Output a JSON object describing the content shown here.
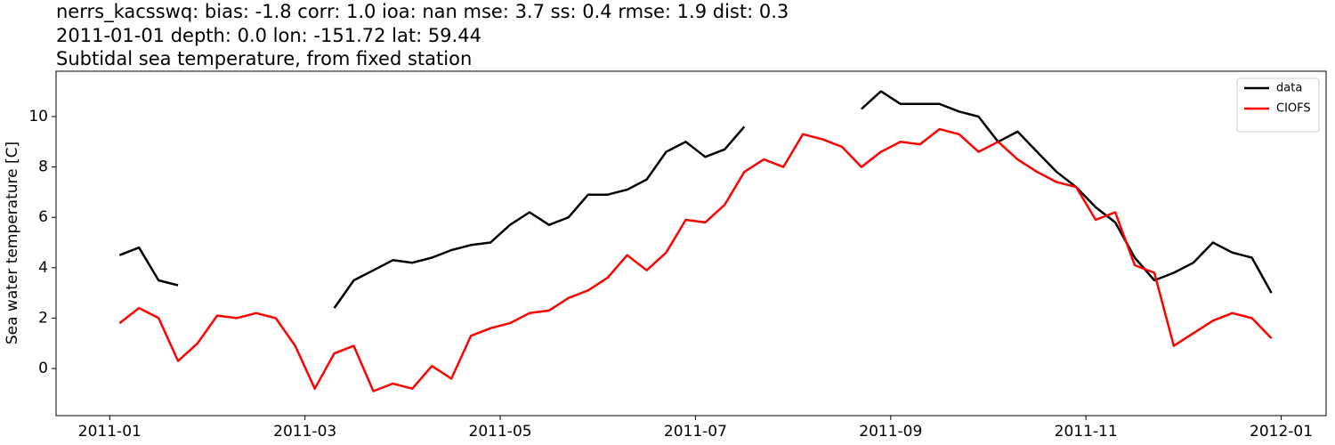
{
  "chart_data": {
    "type": "line",
    "title": [
      "nerrs_kacsswq: bias: -1.8  corr: 1.0  ioa: nan  mse: 3.7  ss: 0.4  rmse: 1.9  dist: 0.3",
      "2011-01-01 depth: 0.0 lon: -151.72 lat: 59.44",
      "Subtidal sea temperature, from fixed station"
    ],
    "y_label": "Sea water temperature [C]",
    "x": [
      0.1,
      0.3,
      0.5,
      0.7,
      0.9,
      1.1,
      1.3,
      1.5,
      1.7,
      1.9,
      2.1,
      2.3,
      2.5,
      2.7,
      2.9,
      3.1,
      3.3,
      3.5,
      3.7,
      3.9,
      4.1,
      4.3,
      4.5,
      4.7,
      4.9,
      5.1,
      5.3,
      5.5,
      5.7,
      5.9,
      6.1,
      6.3,
      6.5,
      6.7,
      6.9,
      7.1,
      7.3,
      7.5,
      7.7,
      7.9,
      8.1,
      8.3,
      8.5,
      8.7,
      8.9,
      9.1,
      9.3,
      9.5,
      9.7,
      9.9,
      10.1,
      10.3,
      10.5,
      10.7,
      10.9,
      11.1,
      11.3,
      11.5,
      11.7,
      11.9
    ],
    "series": [
      {
        "name": "data",
        "color": "#000000",
        "values": [
          4.5,
          4.8,
          3.5,
          3.3,
          null,
          null,
          null,
          null,
          null,
          null,
          null,
          2.4,
          3.5,
          3.9,
          4.3,
          4.2,
          4.4,
          4.7,
          4.9,
          5.0,
          5.7,
          6.2,
          5.7,
          6.0,
          6.9,
          6.9,
          7.1,
          7.5,
          8.6,
          9.0,
          8.4,
          8.7,
          9.6,
          null,
          null,
          null,
          null,
          null,
          10.3,
          11.0,
          10.5,
          10.5,
          10.5,
          10.2,
          10.0,
          9.0,
          9.4,
          8.6,
          7.8,
          7.2,
          6.4,
          5.8,
          4.4,
          3.5,
          3.8,
          4.2,
          5.0,
          4.6,
          4.4,
          3.0
        ]
      },
      {
        "name": "CIOFS",
        "color": "#ff0000",
        "values": [
          1.8,
          2.4,
          2.0,
          0.3,
          1.0,
          2.1,
          2.0,
          2.2,
          2.0,
          0.9,
          -0.8,
          0.6,
          0.9,
          -0.9,
          -0.6,
          -0.8,
          0.1,
          -0.4,
          1.3,
          1.6,
          1.8,
          2.2,
          2.3,
          2.8,
          3.1,
          3.6,
          4.5,
          3.9,
          4.6,
          5.9,
          5.8,
          6.5,
          7.8,
          8.3,
          8.0,
          9.3,
          9.1,
          8.8,
          8.0,
          8.6,
          9.0,
          8.9,
          9.5,
          9.3,
          8.6,
          9.0,
          8.3,
          7.8,
          7.4,
          7.2,
          5.9,
          6.2,
          4.1,
          3.8,
          0.9,
          1.4,
          1.9,
          2.2,
          2.0,
          1.2
        ]
      }
    ],
    "xlim": [
      -0.55,
      12.46
    ],
    "xticks": [
      {
        "value": 0,
        "label": "2011-01"
      },
      {
        "value": 2,
        "label": "2011-03"
      },
      {
        "value": 4,
        "label": "2011-05"
      },
      {
        "value": 6,
        "label": "2011-07"
      },
      {
        "value": 8,
        "label": "2011-09"
      },
      {
        "value": 10,
        "label": "2011-11"
      },
      {
        "value": 12,
        "label": "2012-01"
      }
    ],
    "ylim": [
      -1.87,
      11.8
    ],
    "yticks": [
      0,
      2,
      4,
      6,
      8,
      10
    ],
    "legend": "upper right",
    "grid": false
  }
}
